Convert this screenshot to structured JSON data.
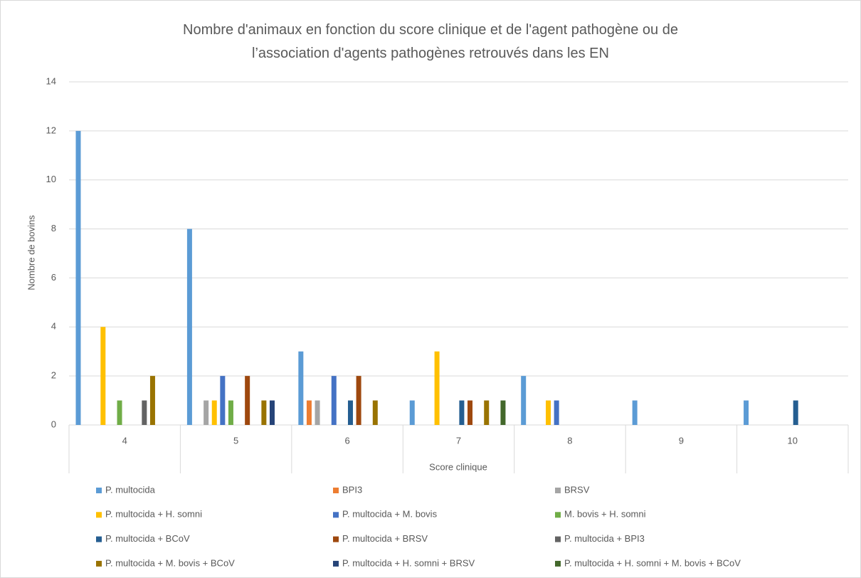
{
  "chart_data": {
    "type": "bar",
    "title": "Nombre d'animaux en fonction du score clinique et de l'agent pathogène ou de l’association d'agents pathogènes retrouvés dans les EN",
    "x_label": "Score clinique",
    "y_label": "Nombre de bovins",
    "categories": [
      "4",
      "5",
      "6",
      "7",
      "8",
      "9",
      "10"
    ],
    "ylim": [
      0,
      14
    ],
    "yticks": [
      0,
      2,
      4,
      6,
      8,
      10,
      12,
      14
    ],
    "grid": true,
    "series": [
      {
        "name": "P. multocida",
        "color": "#5b9bd5",
        "values": [
          12,
          8,
          3,
          1,
          2,
          1,
          1
        ]
      },
      {
        "name": "BPI3",
        "color": "#ed7d31",
        "values": [
          0,
          0,
          1,
          0,
          0,
          0,
          0
        ]
      },
      {
        "name": "BRSV",
        "color": "#a5a5a5",
        "values": [
          0,
          1,
          1,
          0,
          0,
          0,
          0
        ]
      },
      {
        "name": "P. multocida + H. somni",
        "color": "#ffc000",
        "values": [
          4,
          1,
          0,
          3,
          1,
          0,
          0
        ]
      },
      {
        "name": "P. multocida + M. bovis",
        "color": "#4472c4",
        "values": [
          0,
          2,
          2,
          0,
          1,
          0,
          0
        ]
      },
      {
        "name": "M. bovis + H. somni",
        "color": "#70ad47",
        "values": [
          1,
          1,
          0,
          0,
          0,
          0,
          0
        ]
      },
      {
        "name": "P. multocida + BCoV",
        "color": "#255e91",
        "values": [
          0,
          0,
          1,
          1,
          0,
          0,
          1
        ]
      },
      {
        "name": "P. multocida + BRSV",
        "color": "#9e480e",
        "values": [
          0,
          2,
          2,
          1,
          0,
          0,
          0
        ]
      },
      {
        "name": "P. multocida + BPI3",
        "color": "#636363",
        "values": [
          1,
          0,
          0,
          0,
          0,
          0,
          0
        ]
      },
      {
        "name": "P. multocida + M. bovis + BCoV",
        "color": "#997300",
        "values": [
          2,
          1,
          1,
          1,
          0,
          0,
          0
        ]
      },
      {
        "name": "P. multocida + H. somni + BRSV",
        "color": "#264478",
        "values": [
          0,
          1,
          0,
          0,
          0,
          0,
          0
        ]
      },
      {
        "name": "P. multocida + H. somni + M. bovis + BCoV",
        "color": "#43682b",
        "values": [
          0,
          0,
          0,
          1,
          0,
          0,
          0
        ]
      }
    ]
  }
}
